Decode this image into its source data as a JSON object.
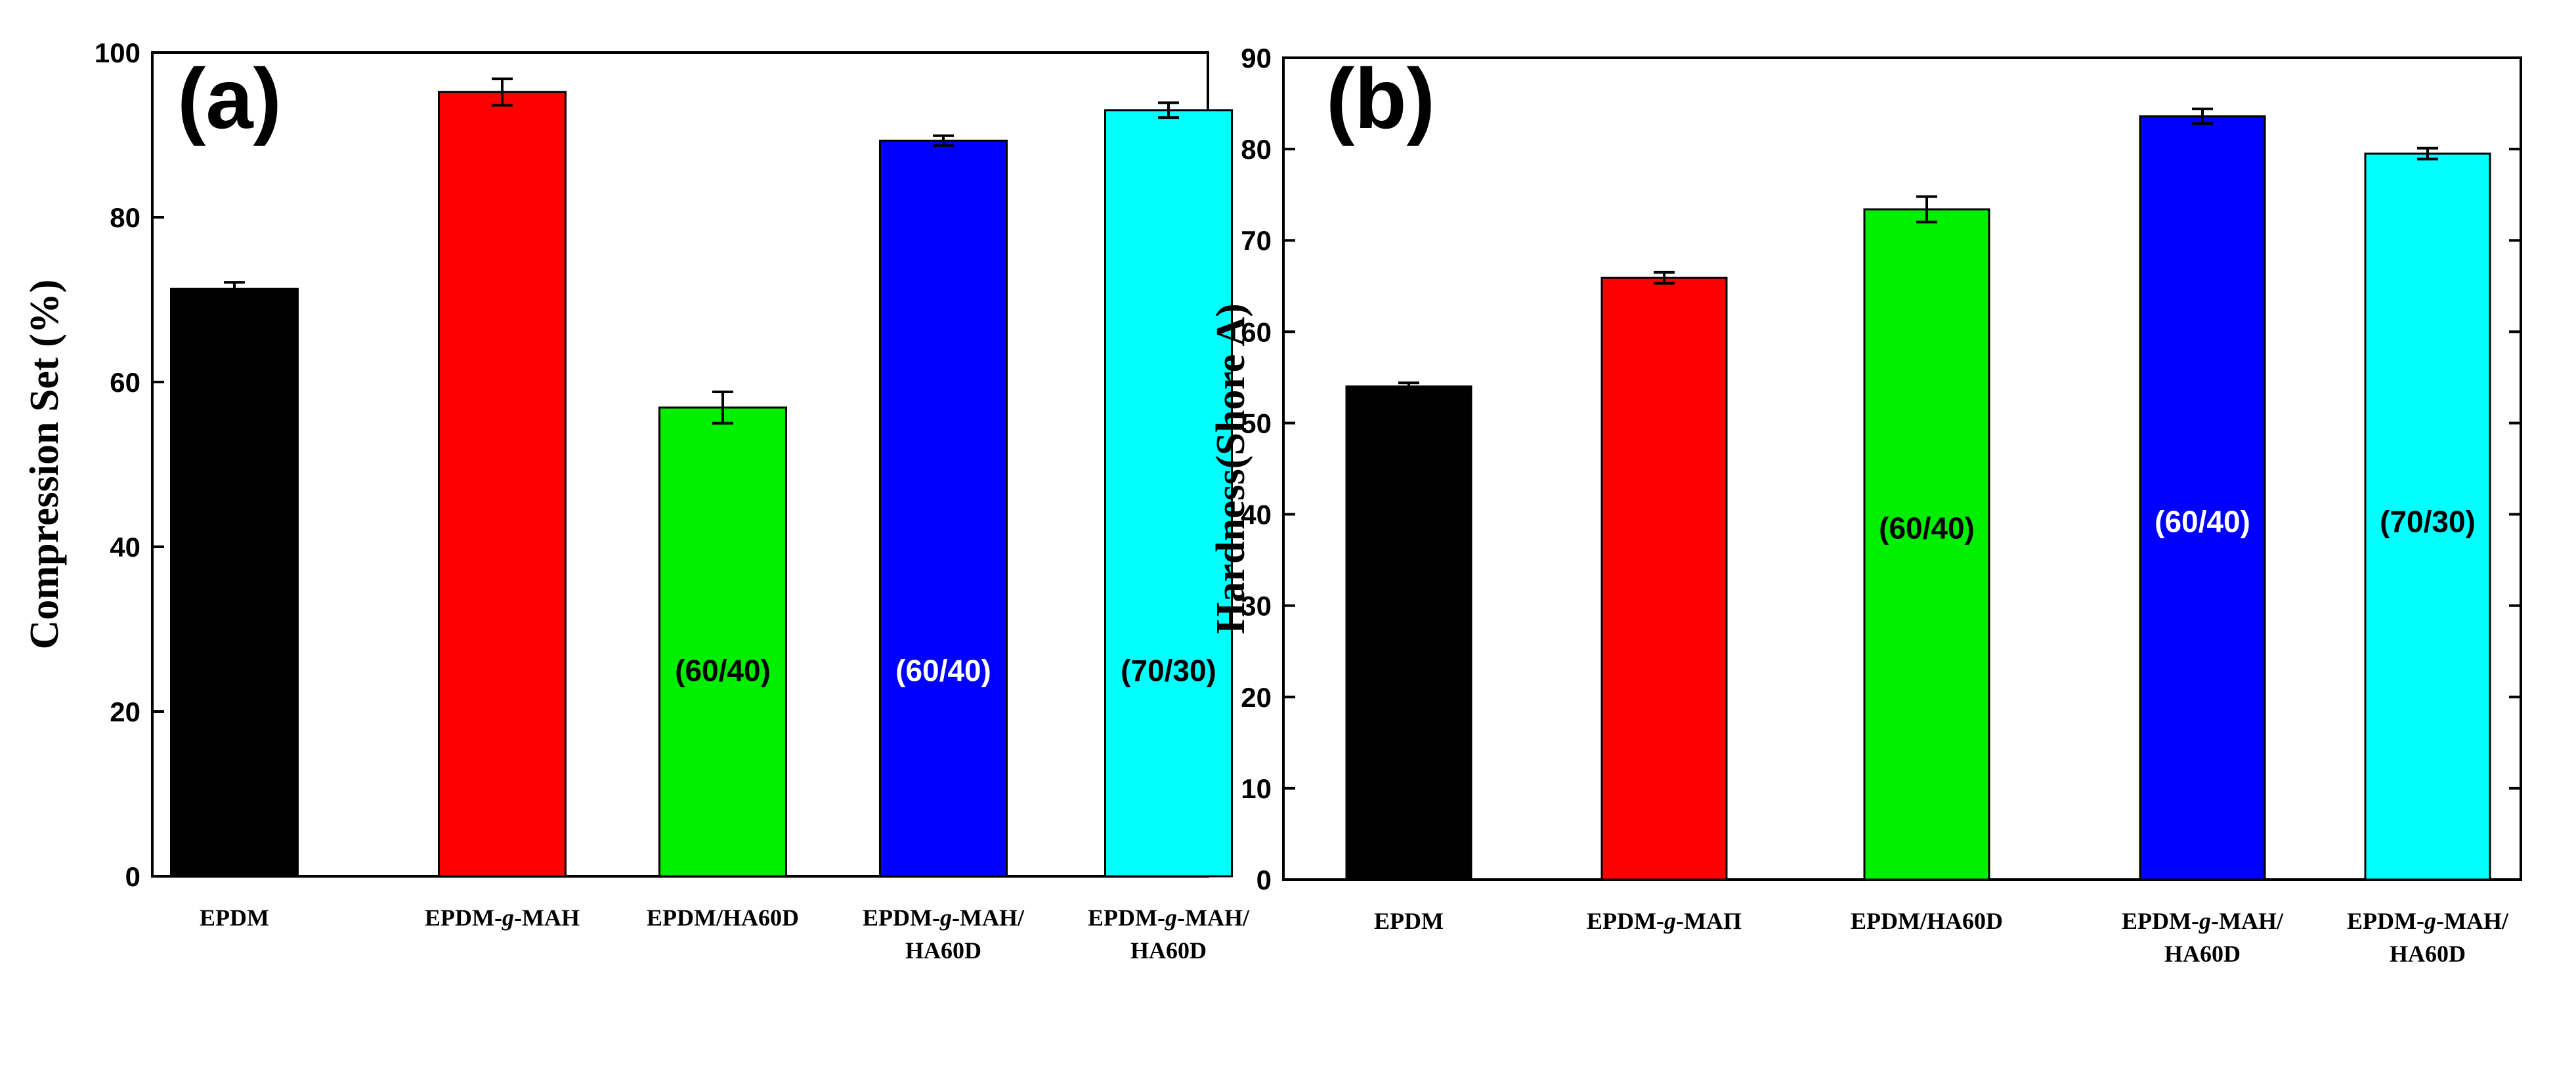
{
  "chart_data": [
    {
      "type": "bar",
      "panel_label": "(a)",
      "ylabel": "Compression Set (%)",
      "xlabel": "",
      "ylim": [
        0,
        100
      ],
      "yticks": [
        0,
        20,
        40,
        60,
        80,
        100
      ],
      "grid": false,
      "categories": [
        {
          "lines": [
            "EPDM"
          ],
          "italic_line0_part": null
        },
        {
          "lines": [
            "EPDM-g-MAH"
          ],
          "italic_line0_part": "g"
        },
        {
          "lines": [
            "EPDM/HA60D"
          ],
          "italic_line0_part": null
        },
        {
          "lines": [
            "EPDM-g-MAH/",
            "HA60D"
          ],
          "italic_line0_part": "g"
        },
        {
          "lines": [
            "EPDM-g-MAH/",
            "HA60D"
          ],
          "italic_line0_part": "g"
        }
      ],
      "values": [
        71.3,
        95.2,
        56.9,
        89.3,
        93.0
      ],
      "errors": [
        0.8,
        1.6,
        1.9,
        0.6,
        0.9
      ],
      "colors": [
        "#000000",
        "#ff0000",
        "#00ee00",
        "#0000ff",
        "#00ffff"
      ],
      "bar_labels": [
        "",
        "",
        "(60/40)",
        "(60/40)",
        "(70/30)"
      ],
      "bar_label_values": [
        0,
        0,
        25,
        25,
        25
      ],
      "bar_label_colors": [
        "#000000",
        "#000000",
        "#000000",
        "#ffffff",
        "#000000"
      ]
    },
    {
      "type": "bar",
      "panel_label": "(b)",
      "ylabel": "Hardness(Shore A)",
      "xlabel": "",
      "ylim": [
        0,
        90
      ],
      "yticks": [
        0,
        10,
        20,
        30,
        40,
        50,
        60,
        70,
        80,
        90
      ],
      "grid": false,
      "categories": [
        {
          "lines": [
            "EPDM"
          ],
          "italic_line0_part": null
        },
        {
          "lines": [
            "EPDM-g-MAΠ"
          ],
          "italic_line0_part": "g"
        },
        {
          "lines": [
            "EPDM/HA60D"
          ],
          "italic_line0_part": null
        },
        {
          "lines": [
            "EPDM-g-MAH/",
            "HA60D"
          ],
          "italic_line0_part": "g"
        },
        {
          "lines": [
            "EPDM-g-MAH/",
            "HA60D"
          ],
          "italic_line0_part": "g"
        }
      ],
      "values": [
        54.0,
        65.9,
        73.4,
        83.6,
        79.5
      ],
      "errors": [
        0.4,
        0.6,
        1.4,
        0.8,
        0.6
      ],
      "colors": [
        "#000000",
        "#ff0000",
        "#00ee00",
        "#0000ff",
        "#00ffff"
      ],
      "bar_labels": [
        "",
        "",
        "(60/40)",
        "(60/40)",
        "(70/30)"
      ],
      "bar_label_values": [
        0,
        0,
        38.5,
        39.2,
        39.2
      ],
      "bar_label_colors": [
        "#000000",
        "#000000",
        "#000000",
        "#ffffff",
        "#000000"
      ]
    }
  ]
}
